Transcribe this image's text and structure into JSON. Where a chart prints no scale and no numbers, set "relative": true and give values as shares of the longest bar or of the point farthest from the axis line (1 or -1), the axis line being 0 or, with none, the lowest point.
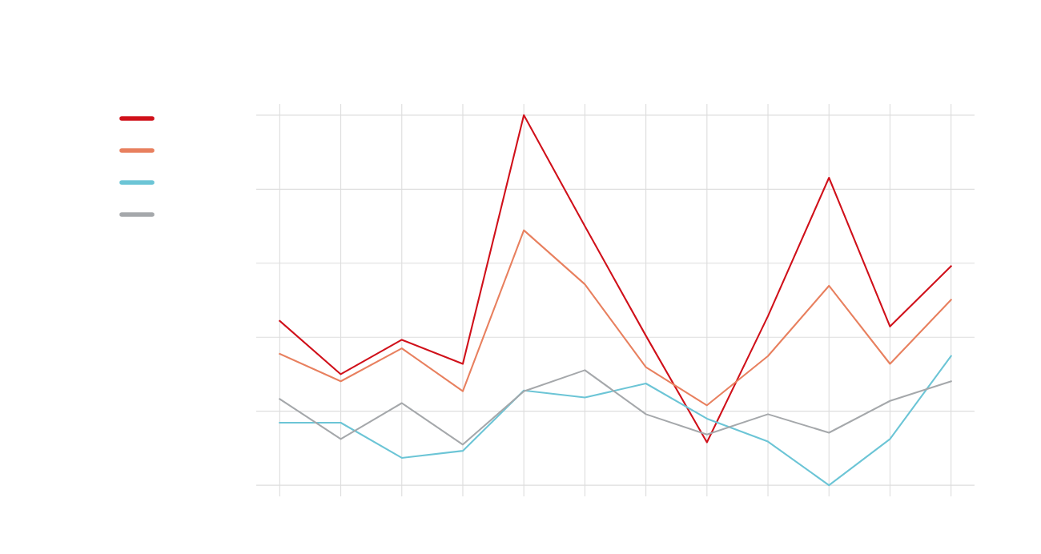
{
  "chart_data": {
    "type": "line",
    "relative": true,
    "grid": true,
    "categories": [
      null,
      null,
      null,
      null,
      null,
      null,
      null,
      null,
      null,
      null,
      null,
      null
    ],
    "series": [
      {
        "color": "#d0101a",
        "values": [
          0.444,
          0.3,
          0.393,
          0.328,
          1.0,
          0.7,
          0.404,
          0.116,
          0.457,
          0.831,
          0.429,
          0.592
        ]
      },
      {
        "color": "#e8805f",
        "values": [
          0.355,
          0.281,
          0.37,
          0.254,
          0.689,
          0.543,
          0.319,
          0.216,
          0.349,
          0.539,
          0.328,
          0.501
        ]
      },
      {
        "color": "#6cc5d6",
        "values": [
          0.169,
          0.169,
          0.074,
          0.093,
          0.256,
          0.237,
          0.275,
          0.18,
          0.118,
          0.0,
          0.125,
          0.349
        ]
      },
      {
        "color": "#a5a8ab",
        "values": [
          0.233,
          0.125,
          0.222,
          0.11,
          0.254,
          0.311,
          0.192,
          0.137,
          0.192,
          0.142,
          0.228,
          0.281
        ]
      }
    ]
  }
}
